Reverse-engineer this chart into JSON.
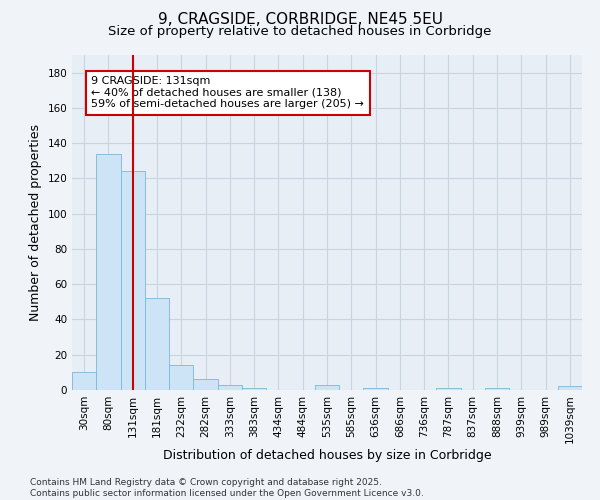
{
  "title": "9, CRAGSIDE, CORBRIDGE, NE45 5EU",
  "subtitle": "Size of property relative to detached houses in Corbridge",
  "xlabel": "Distribution of detached houses by size in Corbridge",
  "ylabel": "Number of detached properties",
  "categories": [
    "30sqm",
    "80sqm",
    "131sqm",
    "181sqm",
    "232sqm",
    "282sqm",
    "333sqm",
    "383sqm",
    "434sqm",
    "484sqm",
    "535sqm",
    "585sqm",
    "636sqm",
    "686sqm",
    "736sqm",
    "787sqm",
    "837sqm",
    "888sqm",
    "939sqm",
    "989sqm",
    "1039sqm"
  ],
  "values": [
    10,
    134,
    124,
    52,
    14,
    6,
    3,
    1,
    0,
    0,
    3,
    0,
    1,
    0,
    0,
    1,
    0,
    1,
    0,
    0,
    2
  ],
  "bar_color": "#cce4f5",
  "bar_edge_color": "#7ab8d9",
  "highlight_index": 2,
  "highlight_line_color": "#cc0000",
  "ylim": [
    0,
    190
  ],
  "yticks": [
    0,
    20,
    40,
    60,
    80,
    100,
    120,
    140,
    160,
    180
  ],
  "annotation_text": "9 CRAGSIDE: 131sqm\n← 40% of detached houses are smaller (138)\n59% of semi-detached houses are larger (205) →",
  "annotation_box_color": "#ffffff",
  "annotation_box_edge": "#cc0000",
  "footer_text": "Contains HM Land Registry data © Crown copyright and database right 2025.\nContains public sector information licensed under the Open Government Licence v3.0.",
  "background_color": "#f0f4f8",
  "plot_bg_color": "#e8eef5",
  "grid_color": "#c8d4e0",
  "title_fontsize": 11,
  "subtitle_fontsize": 9.5,
  "axis_label_fontsize": 9,
  "tick_fontsize": 7.5,
  "annotation_fontsize": 8,
  "footer_fontsize": 6.5
}
